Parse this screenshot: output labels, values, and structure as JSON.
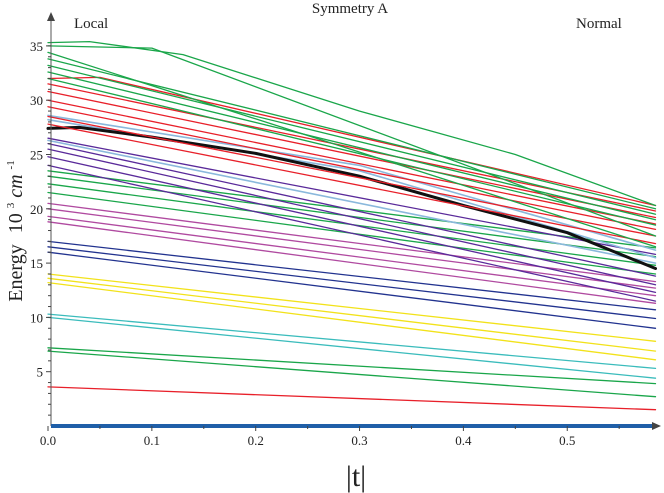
{
  "chart_data": {
    "type": "line",
    "title": "Symmetry A",
    "corner_left": "Local",
    "corner_right": "Normal",
    "xlabel": "|t|",
    "ylabel_word": "Energy",
    "ylabel_unit_base": "10",
    "ylabel_unit_exp": "3",
    "ylabel_unit_cm": "cm",
    "ylabel_unit_cm_exp": "-1",
    "xlim": [
      0,
      0.585
    ],
    "ylim": [
      0,
      36
    ],
    "xticks": [
      "0.0",
      "0.1",
      "0.2",
      "0.3",
      "0.4",
      "0.5"
    ],
    "yticks": [
      "5",
      "10",
      "15",
      "20",
      "25",
      "30",
      "35"
    ],
    "colors": {
      "red": "#e8202a",
      "green": "#1aa64a",
      "cyan": "#3bbcbc",
      "yellow": "#f2e21a",
      "navy": "#22338f",
      "magenta": "#b04aa0",
      "purple": "#5a2a9a",
      "lightblue": "#8ab8dc",
      "black": "#111111",
      "baseline": "#1f5fa8"
    },
    "series": [
      {
        "color": "red",
        "width": 1.3,
        "points": [
          [
            0,
            3.6
          ],
          [
            0.585,
            1.5
          ]
        ]
      },
      {
        "color": "green",
        "width": 1.3,
        "points": [
          [
            0,
            6.9
          ],
          [
            0.585,
            2.7
          ]
        ]
      },
      {
        "color": "green",
        "width": 1.3,
        "points": [
          [
            0,
            7.2
          ],
          [
            0.585,
            3.9
          ]
        ]
      },
      {
        "color": "cyan",
        "width": 1.3,
        "points": [
          [
            0,
            10.0
          ],
          [
            0.585,
            4.4
          ]
        ]
      },
      {
        "color": "cyan",
        "width": 1.3,
        "points": [
          [
            0,
            10.3
          ],
          [
            0.585,
            5.3
          ]
        ]
      },
      {
        "color": "yellow",
        "width": 1.3,
        "points": [
          [
            0,
            13.2
          ],
          [
            0.585,
            6.1
          ]
        ]
      },
      {
        "color": "yellow",
        "width": 1.3,
        "points": [
          [
            0,
            13.6
          ],
          [
            0.585,
            6.9
          ]
        ]
      },
      {
        "color": "yellow",
        "width": 1.3,
        "points": [
          [
            0,
            14.0
          ],
          [
            0.585,
            7.8
          ]
        ]
      },
      {
        "color": "navy",
        "width": 1.3,
        "points": [
          [
            0,
            16.0
          ],
          [
            0.585,
            9.0
          ]
        ]
      },
      {
        "color": "navy",
        "width": 1.3,
        "points": [
          [
            0,
            16.5
          ],
          [
            0.585,
            9.9
          ]
        ]
      },
      {
        "color": "navy",
        "width": 1.3,
        "points": [
          [
            0,
            17.0
          ],
          [
            0.585,
            10.7
          ]
        ]
      },
      {
        "color": "magenta",
        "width": 1.3,
        "points": [
          [
            0,
            18.8
          ],
          [
            0.585,
            11.3
          ]
        ]
      },
      {
        "color": "magenta",
        "width": 1.3,
        "points": [
          [
            0,
            19.3
          ],
          [
            0.585,
            12.0
          ]
        ]
      },
      {
        "color": "magenta",
        "width": 1.3,
        "points": [
          [
            0,
            20.0
          ],
          [
            0.585,
            12.7
          ]
        ]
      },
      {
        "color": "magenta",
        "width": 1.3,
        "points": [
          [
            0,
            20.5
          ],
          [
            0.585,
            13.3
          ]
        ]
      },
      {
        "color": "green",
        "width": 1.3,
        "points": [
          [
            0,
            21.5
          ],
          [
            0.585,
            14.0
          ]
        ]
      },
      {
        "color": "green",
        "width": 1.3,
        "points": [
          [
            0,
            22.3
          ],
          [
            0.585,
            14.8
          ]
        ]
      },
      {
        "color": "green",
        "width": 1.3,
        "points": [
          [
            0,
            23.0
          ],
          [
            0.585,
            15.6
          ]
        ]
      },
      {
        "color": "green",
        "width": 1.3,
        "points": [
          [
            0,
            23.5
          ],
          [
            0.585,
            16.4
          ]
        ]
      },
      {
        "color": "purple",
        "width": 1.3,
        "points": [
          [
            0,
            24.0
          ],
          [
            0.585,
            11.5
          ]
        ]
      },
      {
        "color": "purple",
        "width": 1.3,
        "points": [
          [
            0,
            24.8
          ],
          [
            0.585,
            12.3
          ]
        ]
      },
      {
        "color": "purple",
        "width": 1.3,
        "points": [
          [
            0,
            25.5
          ],
          [
            0.585,
            13.0
          ]
        ]
      },
      {
        "color": "purple",
        "width": 1.3,
        "points": [
          [
            0,
            26.0
          ],
          [
            0.585,
            13.8
          ]
        ]
      },
      {
        "color": "purple",
        "width": 1.3,
        "points": [
          [
            0,
            26.5
          ],
          [
            0.585,
            15.8
          ]
        ]
      },
      {
        "color": "lightblue",
        "width": 1.6,
        "points": [
          [
            0,
            26.3
          ],
          [
            0.585,
            15.0
          ]
        ]
      },
      {
        "color": "lightblue",
        "width": 1.6,
        "points": [
          [
            0,
            28.2
          ],
          [
            0.3,
            23.5
          ],
          [
            0.585,
            15.5
          ]
        ]
      },
      {
        "color": "lightblue",
        "width": 1.6,
        "points": [
          [
            0,
            28.6
          ],
          [
            0.3,
            24.0
          ],
          [
            0.585,
            16.2
          ]
        ]
      },
      {
        "color": "black",
        "width": 3.0,
        "points": [
          [
            0,
            27.4
          ],
          [
            0.03,
            27.5
          ],
          [
            0.1,
            26.6
          ],
          [
            0.2,
            25.1
          ],
          [
            0.3,
            23.0
          ],
          [
            0.4,
            20.3
          ],
          [
            0.5,
            17.8
          ],
          [
            0.585,
            14.5
          ]
        ]
      },
      {
        "color": "red",
        "width": 1.3,
        "points": [
          [
            0,
            27.8
          ],
          [
            0.585,
            16.8
          ]
        ]
      },
      {
        "color": "red",
        "width": 1.3,
        "points": [
          [
            0,
            28.5
          ],
          [
            0.585,
            17.5
          ]
        ]
      },
      {
        "color": "red",
        "width": 1.3,
        "points": [
          [
            0,
            29.4
          ],
          [
            0.585,
            18.1
          ]
        ]
      },
      {
        "color": "red",
        "width": 1.3,
        "points": [
          [
            0,
            30.0
          ],
          [
            0.585,
            18.6
          ]
        ]
      },
      {
        "color": "red",
        "width": 1.3,
        "points": [
          [
            0,
            30.8
          ],
          [
            0.585,
            19.2
          ]
        ]
      },
      {
        "color": "red",
        "width": 1.3,
        "points": [
          [
            0,
            31.5
          ],
          [
            0.585,
            19.8
          ]
        ]
      },
      {
        "color": "red",
        "width": 1.3,
        "points": [
          [
            0,
            32.0
          ],
          [
            0.05,
            32.1
          ],
          [
            0.585,
            20.3
          ]
        ]
      },
      {
        "color": "green",
        "width": 1.3,
        "points": [
          [
            0,
            32.0
          ],
          [
            0.585,
            18.5
          ]
        ]
      },
      {
        "color": "green",
        "width": 1.3,
        "points": [
          [
            0,
            32.6
          ],
          [
            0.585,
            19.0
          ]
        ]
      },
      {
        "color": "green",
        "width": 1.3,
        "points": [
          [
            0,
            33.2
          ],
          [
            0.585,
            19.5
          ]
        ]
      },
      {
        "color": "green",
        "width": 1.3,
        "points": [
          [
            0,
            33.8
          ],
          [
            0.585,
            20.0
          ]
        ]
      },
      {
        "color": "green",
        "width": 1.3,
        "points": [
          [
            0,
            34.4
          ],
          [
            0.585,
            16.5
          ]
        ]
      },
      {
        "color": "green",
        "width": 1.3,
        "points": [
          [
            0,
            35.0
          ],
          [
            0.1,
            34.8
          ],
          [
            0.585,
            17.5
          ]
        ]
      },
      {
        "color": "green",
        "width": 1.3,
        "points": [
          [
            0,
            35.3
          ],
          [
            0.04,
            35.4
          ],
          [
            0.13,
            34.2
          ],
          [
            0.3,
            29.0
          ],
          [
            0.45,
            25.0
          ],
          [
            0.585,
            20.3
          ]
        ]
      }
    ]
  }
}
